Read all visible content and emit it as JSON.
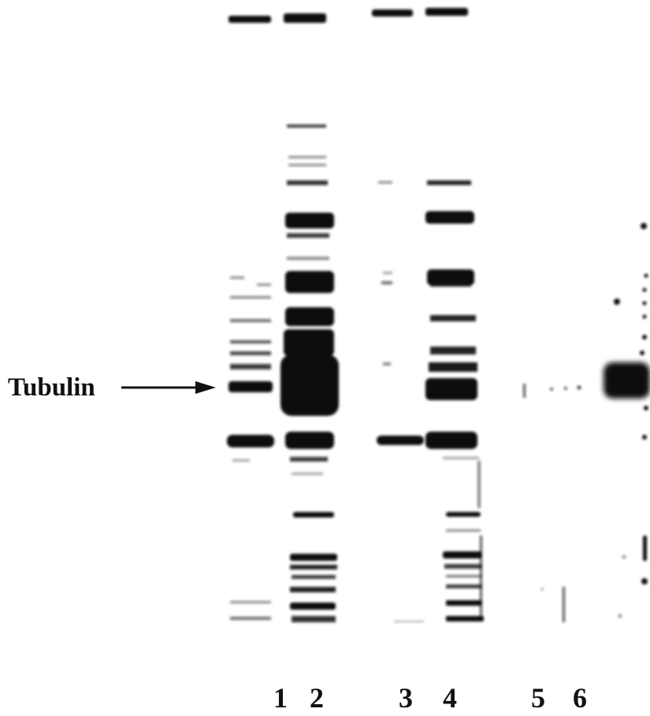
{
  "figure": {
    "label": "Tubulin",
    "lanes": [
      "1",
      "2",
      "3",
      "4",
      "5",
      "6"
    ],
    "ink_color": "#111111",
    "background_color": "#ffffff"
  }
}
